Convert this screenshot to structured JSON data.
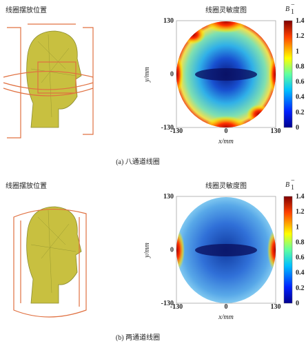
{
  "panels": [
    {
      "left_title": "线圈摆放位置",
      "map_title": "线圈灵敏度图",
      "colorbar_symbol": "B",
      "colorbar_sub": "1",
      "colorbar_sup": "−",
      "y_label": "y/mm",
      "x_label": "x/mm",
      "x_ticks": [
        -130,
        0,
        130
      ],
      "y_ticks": [
        130,
        0,
        -130
      ],
      "colorbar_ticks": [
        0,
        0.2,
        0.4,
        0.6,
        0.8,
        1,
        1.2,
        1.4
      ],
      "caption": "(a) 八通道线圈"
    },
    {
      "left_title": "线圈摆放位置",
      "map_title": "线圈灵敏度图",
      "colorbar_symbol": "B",
      "colorbar_sub": "1",
      "colorbar_sup": "−",
      "y_label": "y/mm",
      "x_label": "x/mm",
      "x_ticks": [
        -130,
        0,
        130
      ],
      "y_ticks": [
        130,
        0,
        -130
      ],
      "colorbar_ticks": [
        0,
        0.2,
        0.4,
        0.6,
        0.8,
        1,
        1.2,
        1.4
      ],
      "caption": "(b) 两通道线圈"
    }
  ]
}
